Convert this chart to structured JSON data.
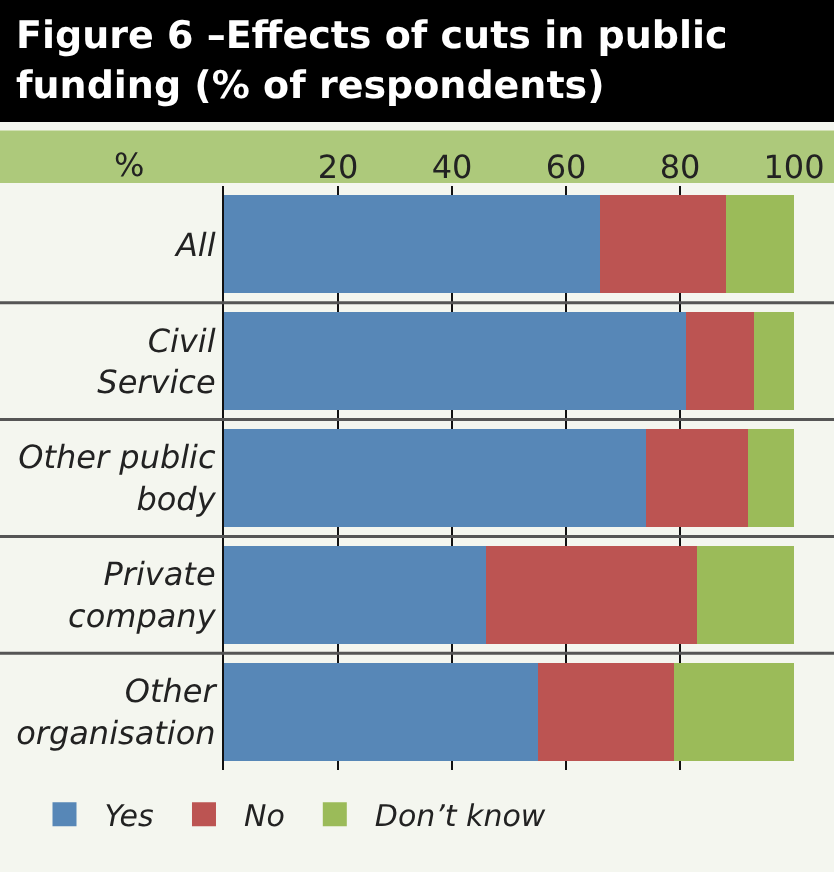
{
  "chart_data": {
    "type": "bar",
    "orientation": "horizontal",
    "stacked": true,
    "title": "Figure 6 –Effects of cuts in public funding (% of respondents)",
    "xlabel": "%",
    "categories": [
      "All",
      "Civil Service",
      "Other public body",
      "Private company",
      "Other organisation"
    ],
    "series": [
      {
        "name": "Yes",
        "color": "#5787b7",
        "values": [
          66,
          81,
          74,
          46,
          55
        ]
      },
      {
        "name": "No",
        "color": "#bc5452",
        "values": [
          22,
          12,
          18,
          37,
          24
        ]
      },
      {
        "name": "Don’t know",
        "color": "#9bbb59",
        "values": [
          12,
          7,
          8,
          17,
          21
        ]
      }
    ],
    "xlim": [
      0,
      100
    ],
    "xticks": [
      20,
      40,
      60,
      80,
      100
    ],
    "grid": "x",
    "legend": "bottom left"
  }
}
